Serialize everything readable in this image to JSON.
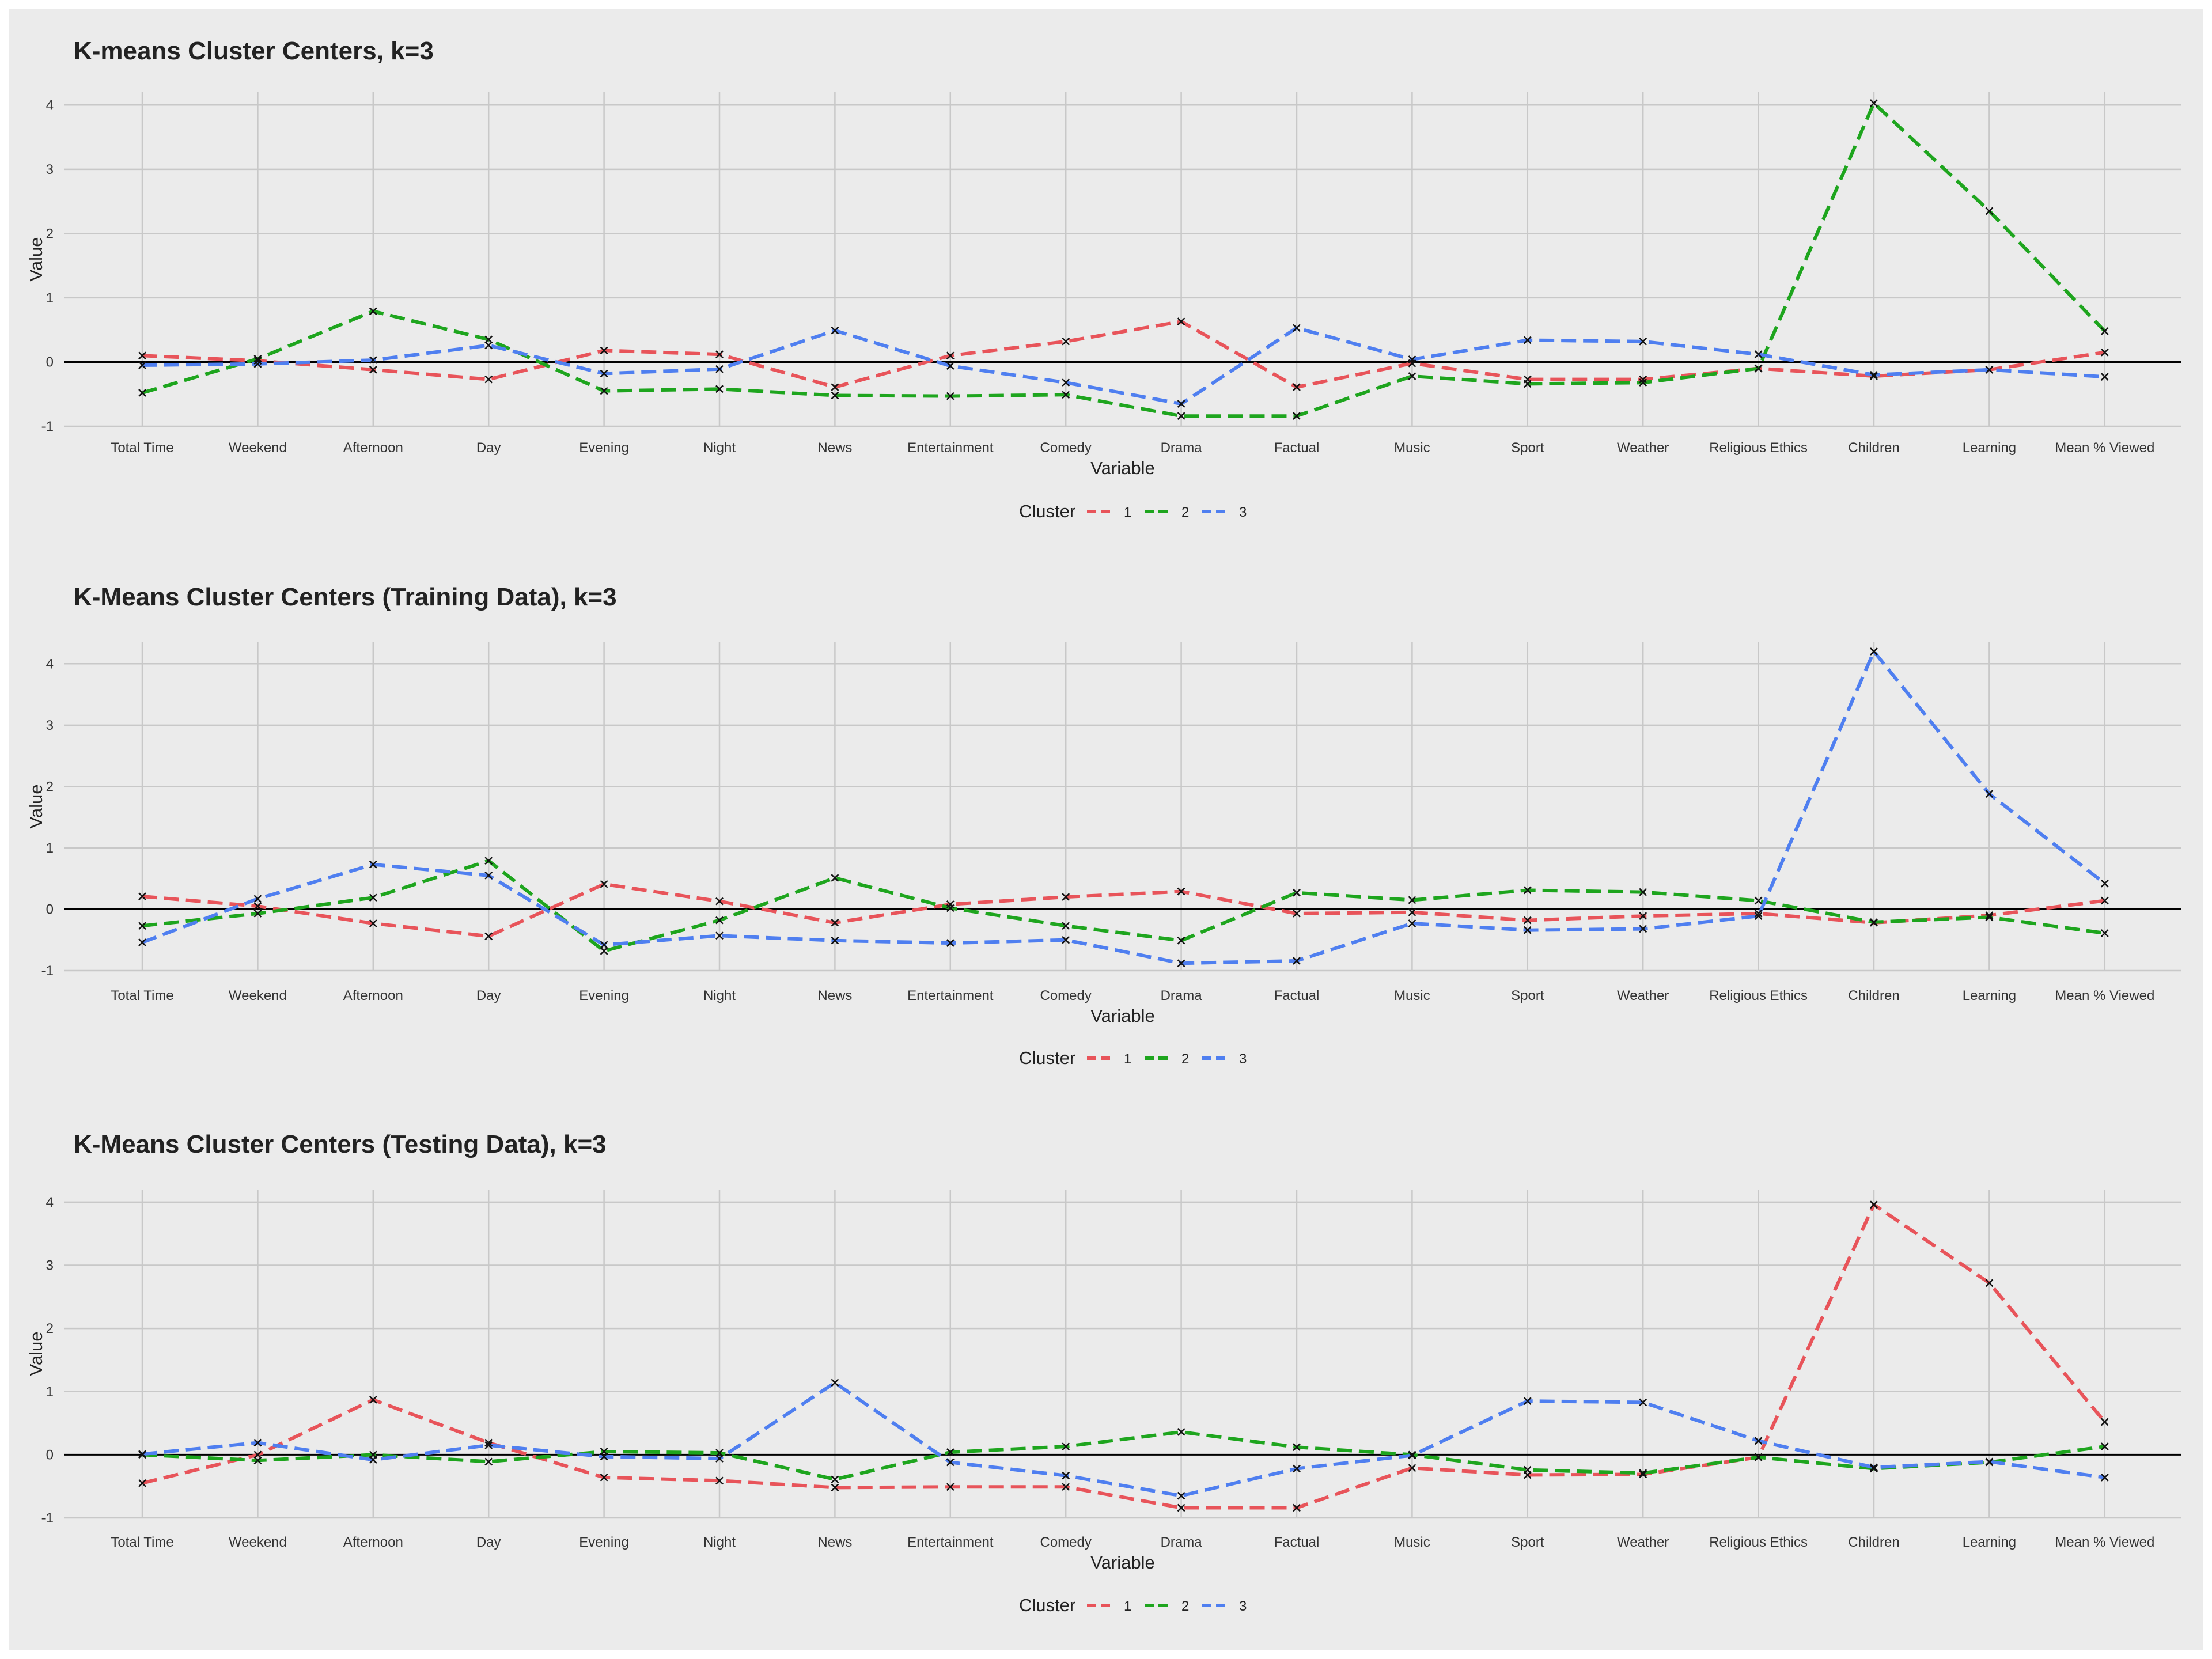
{
  "chart_data": [
    {
      "type": "line",
      "title": "K-means Cluster Centers, k=3",
      "xlabel": "Variable",
      "ylabel": "Value",
      "ylim": [
        -1,
        4.2
      ],
      "yticks": [
        -1,
        0,
        1,
        2,
        3,
        4
      ],
      "grid": true,
      "legend": {
        "title": "Cluster",
        "position": "bottom"
      },
      "categories": [
        "Total Time",
        "Weekend",
        "Afternoon",
        "Day",
        "Evening",
        "Night",
        "News",
        "Entertainment",
        "Comedy",
        "Drama",
        "Factual",
        "Music",
        "Sport",
        "Weather",
        "Religious Ethics",
        "Children",
        "Learning",
        "Mean % Viewed"
      ],
      "series": [
        {
          "name": "1",
          "color": "#e8545a",
          "values": [
            0.1,
            0.02,
            -0.12,
            -0.27,
            0.18,
            0.12,
            -0.39,
            0.1,
            0.32,
            0.63,
            -0.39,
            -0.02,
            -0.27,
            -0.27,
            -0.1,
            -0.22,
            -0.12,
            0.15
          ]
        },
        {
          "name": "2",
          "color": "#1ea51e",
          "values": [
            -0.48,
            0.05,
            0.79,
            0.35,
            -0.45,
            -0.42,
            -0.52,
            -0.53,
            -0.51,
            -0.84,
            -0.84,
            -0.22,
            -0.34,
            -0.32,
            -0.1,
            4.03,
            2.35,
            0.48
          ]
        },
        {
          "name": "3",
          "color": "#4f7ff0",
          "values": [
            -0.05,
            -0.03,
            0.03,
            0.26,
            -0.18,
            -0.11,
            0.49,
            -0.06,
            -0.32,
            -0.65,
            0.53,
            0.04,
            0.34,
            0.32,
            0.12,
            -0.2,
            -0.12,
            -0.23
          ]
        }
      ]
    },
    {
      "type": "line",
      "title": "K-Means Cluster Centers (Training Data), k=3",
      "xlabel": "Variable",
      "ylabel": "Value",
      "ylim": [
        -1,
        4.35
      ],
      "yticks": [
        -1,
        0,
        1,
        2,
        3,
        4
      ],
      "grid": true,
      "legend": {
        "title": "Cluster",
        "position": "bottom"
      },
      "categories": [
        "Total Time",
        "Weekend",
        "Afternoon",
        "Day",
        "Evening",
        "Night",
        "News",
        "Entertainment",
        "Comedy",
        "Drama",
        "Factual",
        "Music",
        "Sport",
        "Weather",
        "Religious Ethics",
        "Children",
        "Learning",
        "Mean % Viewed"
      ],
      "series": [
        {
          "name": "1",
          "color": "#e8545a",
          "values": [
            0.21,
            0.05,
            -0.23,
            -0.44,
            0.41,
            0.13,
            -0.22,
            0.08,
            0.2,
            0.29,
            -0.07,
            -0.05,
            -0.18,
            -0.11,
            -0.07,
            -0.22,
            -0.1,
            0.14
          ]
        },
        {
          "name": "2",
          "color": "#1ea51e",
          "values": [
            -0.27,
            -0.07,
            0.19,
            0.79,
            -0.68,
            -0.18,
            0.51,
            0.02,
            -0.27,
            -0.51,
            0.27,
            0.15,
            0.31,
            0.28,
            0.14,
            -0.21,
            -0.13,
            -0.39
          ]
        },
        {
          "name": "3",
          "color": "#4f7ff0",
          "values": [
            -0.54,
            0.17,
            0.73,
            0.55,
            -0.58,
            -0.43,
            -0.51,
            -0.55,
            -0.5,
            -0.88,
            -0.84,
            -0.23,
            -0.34,
            -0.32,
            -0.11,
            4.2,
            1.88,
            0.42
          ]
        }
      ]
    },
    {
      "type": "line",
      "title": "K-Means Cluster Centers (Testing Data), k=3",
      "xlabel": "Variable",
      "ylabel": "Value",
      "ylim": [
        -1,
        4.2
      ],
      "yticks": [
        -1,
        0,
        1,
        2,
        3,
        4
      ],
      "grid": true,
      "legend": {
        "title": "Cluster",
        "position": "bottom"
      },
      "categories": [
        "Total Time",
        "Weekend",
        "Afternoon",
        "Day",
        "Evening",
        "Night",
        "News",
        "Entertainment",
        "Comedy",
        "Drama",
        "Factual",
        "Music",
        "Sport",
        "Weather",
        "Religious Ethics",
        "Children",
        "Learning",
        "Mean % Viewed"
      ],
      "series": [
        {
          "name": "1",
          "color": "#e8545a",
          "values": [
            -0.45,
            0.0,
            0.87,
            0.19,
            -0.36,
            -0.41,
            -0.52,
            -0.51,
            -0.51,
            -0.84,
            -0.84,
            -0.21,
            -0.32,
            -0.31,
            -0.04,
            3.96,
            2.72,
            0.52
          ]
        },
        {
          "name": "2",
          "color": "#1ea51e",
          "values": [
            0.0,
            -0.09,
            0.0,
            -0.11,
            0.05,
            0.03,
            -0.39,
            0.04,
            0.13,
            0.36,
            0.12,
            0.0,
            -0.24,
            -0.29,
            -0.04,
            -0.22,
            -0.12,
            0.13
          ]
        },
        {
          "name": "3",
          "color": "#4f7ff0",
          "values": [
            0.01,
            0.19,
            -0.08,
            0.15,
            -0.03,
            -0.06,
            1.14,
            -0.12,
            -0.33,
            -0.65,
            -0.22,
            -0.01,
            0.85,
            0.83,
            0.22,
            -0.2,
            -0.11,
            -0.36
          ]
        }
      ]
    }
  ]
}
